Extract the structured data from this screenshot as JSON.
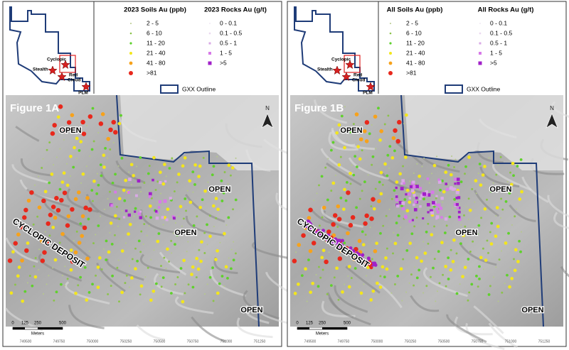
{
  "panels": [
    {
      "legend": {
        "soils_title": "2023 Soils Au (ppb)",
        "soils": [
          {
            "label": "2 - 5",
            "color": "#b5c98a"
          },
          {
            "label": "6 - 10",
            "color": "#8bc34a"
          },
          {
            "label": "11 - 20",
            "color": "#5fd12c"
          },
          {
            "label": "21 - 40",
            "color": "#f3e61c"
          },
          {
            "label": "41 - 80",
            "color": "#f7a21b"
          },
          {
            "label": ">81",
            "color": "#e8281c"
          }
        ],
        "rocks_title": "2023 Rocks Au (g/t)",
        "rocks": [
          {
            "label": "0 - 0.1",
            "color": "#f4eef7"
          },
          {
            "label": "0.1 - 0.5",
            "color": "#ead9f0"
          },
          {
            "label": "0.5 - 1",
            "color": "#d9a9e6"
          },
          {
            "label": "1 - 5",
            "color": "#d77ae8"
          },
          {
            "label": ">5",
            "color": "#a020c8"
          }
        ],
        "outline": "GXX Outline"
      },
      "inset": {
        "cyclopic": "Cyclopic",
        "stealth": "Stealth",
        "red_cloud": [
          "Red",
          "Cloud"
        ],
        "plm": "PLM"
      },
      "map": {
        "figure": "Figure 1A",
        "open": [
          "OPEN",
          "OPEN",
          "OPEN",
          "OPEN"
        ],
        "deposit": "CYCLOPIC DEPOSIT",
        "north": "N",
        "scale": [
          "0",
          "125",
          "250",
          "500"
        ],
        "scale_unit": "Meters",
        "x_ticks": [
          "749500",
          "749750",
          "750000",
          "750250",
          "750500",
          "750750",
          "751000",
          "751250"
        ]
      }
    },
    {
      "legend": {
        "soils_title": "All Soils Au (ppb)",
        "soils": [
          {
            "label": "2 - 5",
            "color": "#b5c98a"
          },
          {
            "label": "6 - 10",
            "color": "#8bc34a"
          },
          {
            "label": "11 - 20",
            "color": "#5fd12c"
          },
          {
            "label": "21 - 40",
            "color": "#f3e61c"
          },
          {
            "label": "41 - 80",
            "color": "#f7a21b"
          },
          {
            "label": ">81",
            "color": "#e8281c"
          }
        ],
        "rocks_title": "All Rocks Au (g/t)",
        "rocks": [
          {
            "label": "0 - 0.1",
            "color": "#f4eef7"
          },
          {
            "label": "0.1 - 0.5",
            "color": "#ead9f0"
          },
          {
            "label": "0.5 - 1",
            "color": "#d9a9e6"
          },
          {
            "label": "1 - 5",
            "color": "#d77ae8"
          },
          {
            "label": ">5",
            "color": "#a020c8"
          }
        ],
        "outline": "GXX Outline"
      },
      "inset": {
        "cyclopic": "Cyclopic",
        "stealth": "Stealth",
        "red_cloud": [
          "Red",
          "Cloud"
        ],
        "plm": "PLM"
      },
      "map": {
        "figure": "Figure 1B",
        "open": [
          "OPEN",
          "OPEN",
          "OPEN",
          "OPEN"
        ],
        "deposit": "CYCLOPIC DEPOSIT",
        "north": "N",
        "scale": [
          "0",
          "125",
          "250",
          "500"
        ],
        "scale_unit": "Meters",
        "x_ticks": [
          "749500",
          "749750",
          "750000",
          "750250",
          "750500",
          "750750",
          "751000",
          "751250"
        ]
      }
    }
  ]
}
